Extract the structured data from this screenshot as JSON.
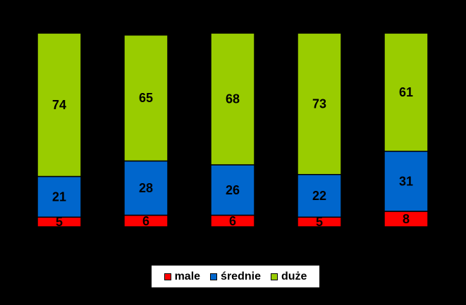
{
  "chart_data": {
    "type": "bar",
    "stacked": true,
    "normalized_percent": true,
    "categories": [
      "",
      "",
      "",
      "",
      ""
    ],
    "series": [
      {
        "name": "male",
        "color": "#ff0000",
        "values": [
          5,
          6,
          6,
          5,
          8
        ]
      },
      {
        "name": "średnie",
        "color": "#0066cc",
        "values": [
          21,
          28,
          26,
          22,
          31
        ]
      },
      {
        "name": "duże",
        "color": "#99cc00",
        "values": [
          74,
          65,
          68,
          73,
          61
        ]
      }
    ],
    "ylim": [
      0,
      100
    ],
    "grid": false,
    "legend_position": "bottom",
    "background": "#000000"
  }
}
